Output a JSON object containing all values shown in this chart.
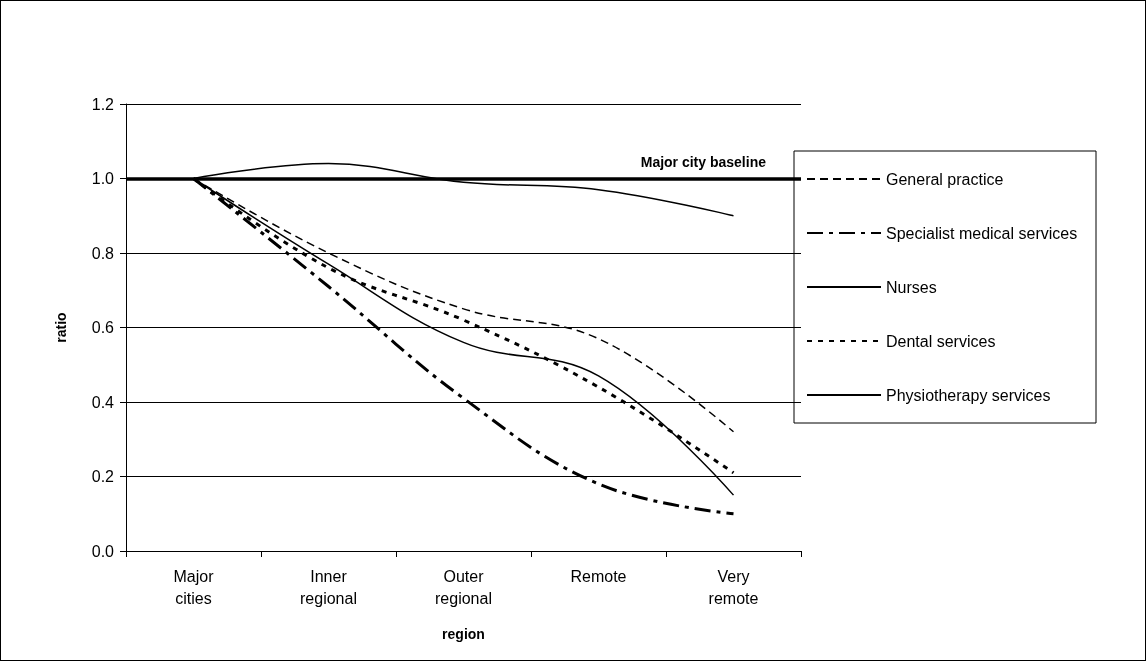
{
  "chart_data": {
    "type": "line",
    "xlabel": "region",
    "ylabel": "ratio",
    "categories": [
      "Major\ncities",
      "Inner\nregional",
      "Outer\nregional",
      "Remote",
      "Very\nremote"
    ],
    "series": [
      {
        "name": "General practice",
        "color": "#000000",
        "line_style": "dashed",
        "values": [
          1.0,
          0.8,
          0.65,
          0.57,
          0.32
        ]
      },
      {
        "name": "Specialist medical services",
        "color": "#000000",
        "line_style": "dashdot",
        "values": [
          1.0,
          0.71,
          0.41,
          0.18,
          0.1
        ]
      },
      {
        "name": "Nurses",
        "color": "#000000",
        "line_style": "solid",
        "values": [
          1.0,
          1.04,
          0.99,
          0.97,
          0.9
        ]
      },
      {
        "name": "Dental services",
        "color": "#000000",
        "line_style": "dotted",
        "values": [
          1.0,
          0.76,
          0.62,
          0.44,
          0.21
        ]
      },
      {
        "name": "Physiotherapy services",
        "color": "#000000",
        "line_style": "solid",
        "values": [
          1.0,
          0.77,
          0.56,
          0.47,
          0.15
        ]
      }
    ],
    "ylim": [
      0,
      1.2
    ],
    "yticks": [
      {
        "value": 0,
        "label": "0.0"
      },
      {
        "value": 0.2,
        "label": "0.2"
      },
      {
        "value": 0.4,
        "label": "0.4"
      },
      {
        "value": 0.6,
        "label": "0.6"
      },
      {
        "value": 0.8,
        "label": "0.8"
      },
      {
        "value": 1.0,
        "label": "1.0"
      },
      {
        "value": 1.2,
        "label": "1.2"
      }
    ],
    "ref_lines": [
      {
        "axis": "y",
        "value": 1.0,
        "label": "Major city baseline",
        "color": "#000000"
      }
    ],
    "grid": "y",
    "legend": "right",
    "marker": "none"
  }
}
